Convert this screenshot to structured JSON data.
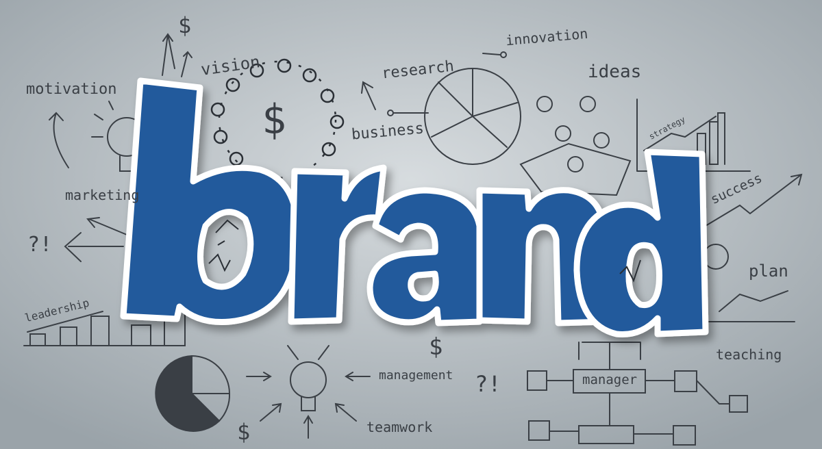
{
  "headline": "brand",
  "words": {
    "motivation": "motivation",
    "vision": "vision",
    "research": "research",
    "innovation": "innovation",
    "ideas": "ideas",
    "business": "business",
    "marketing": "marketing",
    "strategy": "strategy",
    "success": "success",
    "plan": "plan",
    "leadership": "leadership",
    "teaching": "teaching",
    "management": "management",
    "manager": "manager",
    "teamwork": "teamwork",
    "qmark1": "?!",
    "qmark2": "?!",
    "dollar1": "$",
    "dollar2": "$",
    "dollar3": "$",
    "dollar4": "$"
  },
  "colors": {
    "letter": "#215a9c",
    "letter_dark": "#163f70",
    "outline": "#ffffff",
    "background": "#b7bfc4",
    "sketch": "#3a3f45"
  }
}
